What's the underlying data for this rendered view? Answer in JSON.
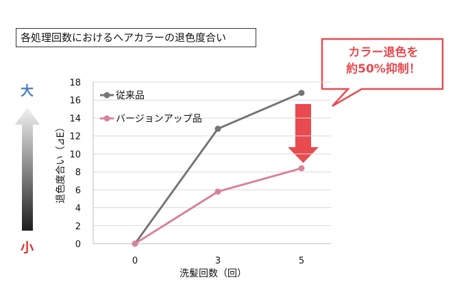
{
  "title": "各処理回数におけるヘアカラーの退色度合い",
  "callout": {
    "line1": "カラー退色を",
    "line2": "約50%抑制！"
  },
  "scale_labels": {
    "top": "大",
    "bottom": "小"
  },
  "colors": {
    "conventional": "#757575",
    "version_up": "#d9839a",
    "accent_red": "#e84a4f",
    "big_blue": "#4a7cc4"
  },
  "chart_data": {
    "type": "line",
    "x": [
      0,
      3,
      5
    ],
    "xlabel": "洗髪回数（回）",
    "ylabel": "退色度合い（⊿E）",
    "ylim": [
      0,
      18
    ],
    "yticks": [
      0,
      2,
      4,
      6,
      8,
      10,
      12,
      14,
      16,
      18
    ],
    "grid": true,
    "legend": "top-left",
    "series": [
      {
        "name": "従来品",
        "values": [
          0,
          12.8,
          16.8
        ],
        "color": "#757575"
      },
      {
        "name": "バージョンアップ品",
        "values": [
          0,
          5.8,
          8.4
        ],
        "color": "#d9839a"
      }
    ]
  }
}
